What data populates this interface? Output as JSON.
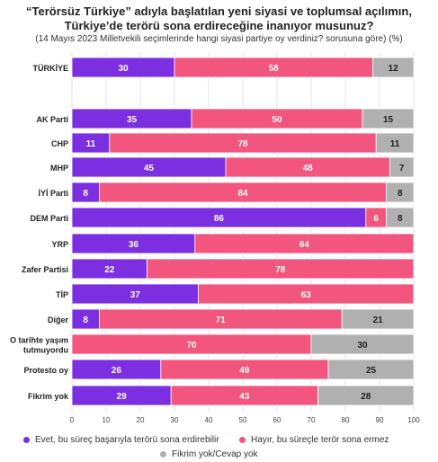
{
  "chart_data": {
    "type": "bar",
    "orientation": "horizontal",
    "stacked": true,
    "title_line1": "“Terörsüz Türkiye” adıyla başlatılan yeni siyasi ve toplumsal açılımın,",
    "title_line2": "Türkiye’de terörü sona erdireceğine inanıyor musunuz?",
    "subtitle": "(14 Mayıs 2023 Milletvekili seçimlerinde hangi siyasi partiye oy verdiniz? sorusuna göre) (%)",
    "categories": [
      "TÜRKİYE",
      "AK Parti",
      "CHP",
      "MHP",
      "İYİ Parti",
      "DEM Parti",
      "YRP",
      "Zafer Partisi",
      "TİP",
      "Diğer",
      "O tarihte yaşım tutmuyordu",
      "Protesto oy",
      "Fikrim yok"
    ],
    "series": [
      {
        "name": "Evet, bu süreç başarıyla terörü sona erdirebilir",
        "color": "#7b2fe0",
        "values": [
          30,
          35,
          11,
          45,
          8,
          86,
          36,
          22,
          37,
          8,
          0,
          26,
          29
        ]
      },
      {
        "name": "Hayır, bu süreçle terör sona ermez",
        "color": "#f2557d",
        "values": [
          58,
          50,
          78,
          48,
          84,
          6,
          64,
          78,
          63,
          71,
          70,
          49,
          43
        ]
      },
      {
        "name": "Fikrim yok/Cevap yok",
        "color": "#b0b0b0",
        "values": [
          12,
          15,
          11,
          7,
          8,
          8,
          0,
          0,
          0,
          21,
          30,
          25,
          28
        ]
      }
    ],
    "xlim": [
      0,
      100
    ],
    "xticks": [
      0,
      10,
      20,
      30,
      40,
      50,
      60,
      70,
      80,
      90,
      100
    ],
    "legend_position": "bottom",
    "grid": true
  }
}
